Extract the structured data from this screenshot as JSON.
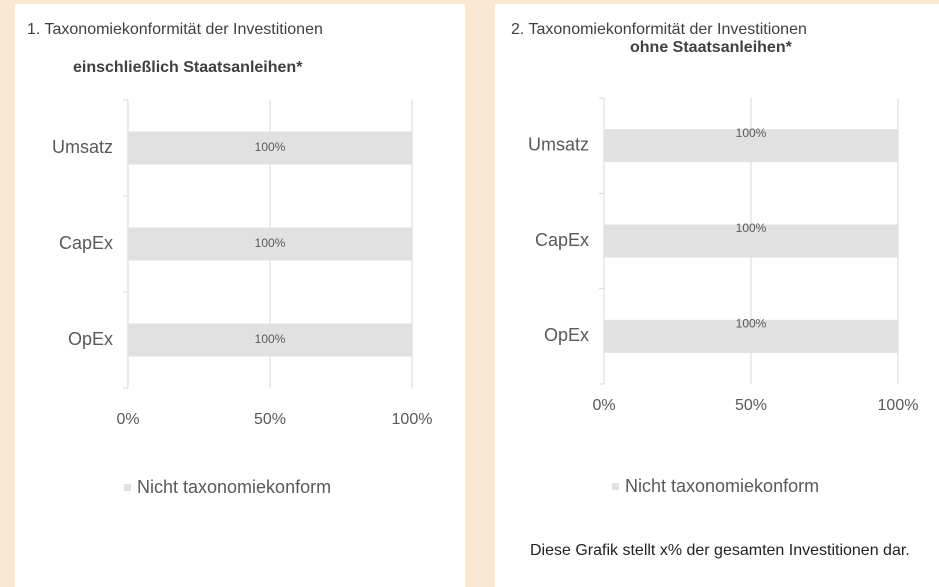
{
  "chart_data": [
    {
      "type": "barh",
      "title": "1. Taxonomiekonformität der Investitionen",
      "subtitle": "einschließlich Staatsanleihen*",
      "categories": [
        "Umsatz",
        "CapEx",
        "OpEx"
      ],
      "series": [
        {
          "name": "Nicht taxonomiekonform",
          "color": "#e1e1e1",
          "values": [
            100,
            100,
            100
          ],
          "value_labels": [
            "100%",
            "100%",
            "100%"
          ]
        }
      ],
      "xlim": [
        0,
        100
      ],
      "xticks": [
        {
          "value": 0,
          "label": "0%"
        },
        {
          "value": 50,
          "label": "50%"
        },
        {
          "value": 100,
          "label": "100%"
        }
      ],
      "grid": true,
      "legend": "bottom"
    },
    {
      "type": "barh",
      "title": "2. Taxonomiekonformität der Investitionen",
      "subtitle": "ohne Staatsanleihen*",
      "categories": [
        "Umsatz",
        "CapEx",
        "OpEx"
      ],
      "series": [
        {
          "name": "Nicht taxonomiekonform",
          "color": "#e1e1e1",
          "values": [
            100,
            100,
            100
          ],
          "value_labels": [
            "100%",
            "100%",
            "100%"
          ]
        }
      ],
      "xlim": [
        0,
        100
      ],
      "xticks": [
        {
          "value": 0,
          "label": "0%"
        },
        {
          "value": 50,
          "label": "50%"
        },
        {
          "value": 100,
          "label": "100%"
        }
      ],
      "grid": true,
      "legend": "bottom",
      "annotation": "Diese Grafik stellt x% der gesamten Investitionen dar."
    }
  ]
}
